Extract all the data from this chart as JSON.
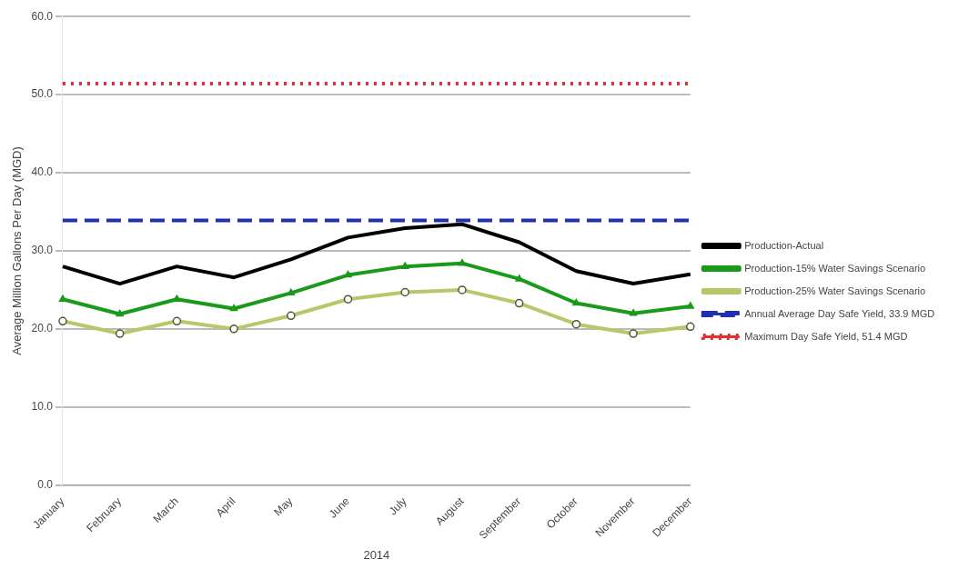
{
  "chart_data": {
    "type": "line",
    "xlabel": "2014",
    "ylabel": "Average Million Gallons Per Day (MGD)",
    "categories": [
      "January",
      "February",
      "March",
      "April",
      "May",
      "June",
      "July",
      "August",
      "September",
      "October",
      "November",
      "December"
    ],
    "series": [
      {
        "name": "Production-Actual",
        "color": "#000000",
        "marker": "none",
        "values": [
          28.0,
          25.8,
          28.0,
          26.6,
          28.9,
          31.7,
          32.9,
          33.4,
          31.1,
          27.4,
          25.8,
          27.0
        ]
      },
      {
        "name": "Production-15% Water Savings Scenario",
        "color": "#1a9a1a",
        "marker": "triangle",
        "values": [
          23.8,
          21.9,
          23.8,
          22.6,
          24.6,
          26.9,
          28.0,
          28.4,
          26.4,
          23.3,
          22.0,
          22.9
        ]
      },
      {
        "name": "Production-25% Water Savings Scenario",
        "color": "#b5c96a",
        "marker": "circle",
        "values": [
          21.0,
          19.4,
          21.0,
          20.0,
          21.7,
          23.8,
          24.7,
          25.0,
          23.3,
          20.6,
          19.4,
          20.3
        ]
      }
    ],
    "ref_lines": [
      {
        "axis": "y",
        "value": 33.9,
        "label": "Annual Average Day Safe Yield, 33.9 MGD",
        "color": "#1f2fb0",
        "line_style": "dashed"
      },
      {
        "axis": "y",
        "value": 51.4,
        "label": "Maximum Day Safe Yield, 51.4 MGD",
        "color": "#e03030",
        "line_style": "dotted"
      }
    ],
    "ylim": [
      0,
      60
    ],
    "yticks": [
      {
        "value": 0,
        "label": "0.0"
      },
      {
        "value": 10,
        "label": "10.0"
      },
      {
        "value": 20,
        "label": "20.0"
      },
      {
        "value": 30,
        "label": "30.0"
      },
      {
        "value": 40,
        "label": "40.0"
      },
      {
        "value": 50,
        "label": "50.0"
      },
      {
        "value": 60,
        "label": "60.0"
      }
    ],
    "grid": "y",
    "legend": "right"
  }
}
